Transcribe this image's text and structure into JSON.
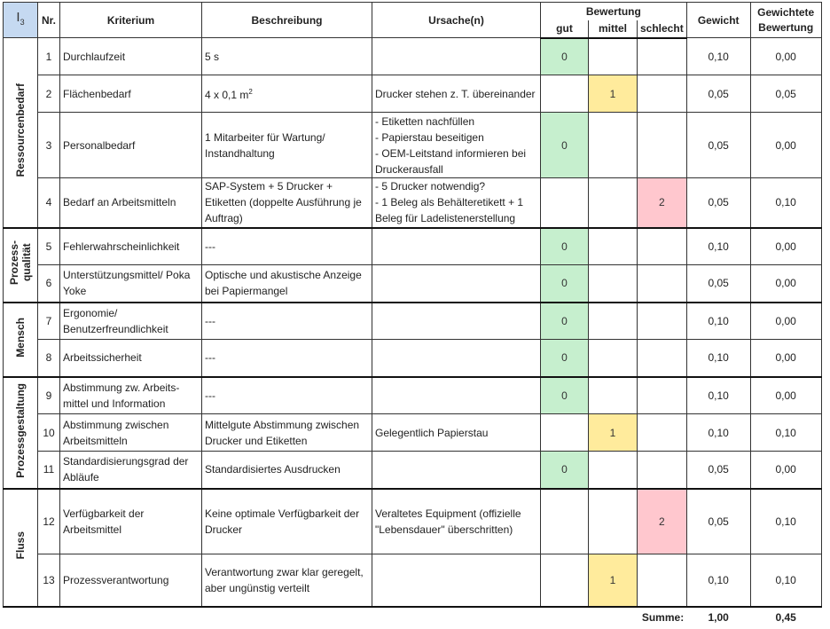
{
  "header": {
    "tag": "I",
    "tag_sub": "3",
    "nr": "Nr.",
    "kriterium": "Kriterium",
    "beschreibung": "Beschreibung",
    "ursache": "Ursache(n)",
    "bewertung": "Bewertung",
    "gut": "gut",
    "mittel": "mittel",
    "schlecht": "schlecht",
    "gewicht": "Gewicht",
    "gewichtete": "Gewichtete Bewertung"
  },
  "groups": {
    "g1": "Ressourcenbedarf",
    "g2": "Prozess-\nqualität",
    "g3": "Mensch",
    "g4": "Prozessgestaltung",
    "g5": "Fluss"
  },
  "rows": [
    {
      "nr": "1",
      "kriterium": "Durchlaufzeit",
      "beschreibung": "5 s",
      "ursache": "",
      "score": "0",
      "gewicht": "0,10",
      "gewichtete": "0,00"
    },
    {
      "nr": "2",
      "kriterium": "Flächenbedarf",
      "beschreibung": "4 x 0,1 m",
      "beschreibung_sup": "2",
      "ursache": "Drucker stehen z. T. übereinander",
      "score": "1",
      "gewicht": "0,05",
      "gewichtete": "0,05"
    },
    {
      "nr": "3",
      "kriterium": "Personalbedarf",
      "beschreibung": "1 Mitarbeiter für Wartung/ Instandhaltung",
      "ursache": "- Etiketten nachfüllen\n- Papierstau beseitigen\n- OEM-Leitstand informieren bei Druckerausfall",
      "score": "0",
      "gewicht": "0,05",
      "gewichtete": "0,00"
    },
    {
      "nr": "4",
      "kriterium": "Bedarf an Arbeitsmitteln",
      "beschreibung": "SAP-System + 5 Drucker + Etiketten (doppelte Ausführung je Auftrag)",
      "ursache": "- 5 Drucker notwendig?\n- 1 Beleg als Behälteretikett + 1 Beleg für Ladelistenerstellung",
      "score": "2",
      "gewicht": "0,05",
      "gewichtete": "0,10"
    },
    {
      "nr": "5",
      "kriterium": "Fehlerwahrscheinlichkeit",
      "beschreibung": "---",
      "ursache": "",
      "score": "0",
      "gewicht": "0,10",
      "gewichtete": "0,00"
    },
    {
      "nr": "6",
      "kriterium": "Unterstützungsmittel/ Poka Yoke",
      "beschreibung": "Optische und akustische Anzeige bei Papiermangel",
      "ursache": "",
      "score": "0",
      "gewicht": "0,05",
      "gewichtete": "0,00"
    },
    {
      "nr": "7",
      "kriterium": "Ergonomie/ Benutzerfreundlichkeit",
      "beschreibung": "---",
      "ursache": "",
      "score": "0",
      "gewicht": "0,10",
      "gewichtete": "0,00"
    },
    {
      "nr": "8",
      "kriterium": "Arbeitssicherheit",
      "beschreibung": "---",
      "ursache": "",
      "score": "0",
      "gewicht": "0,10",
      "gewichtete": "0,00"
    },
    {
      "nr": "9",
      "kriterium": "Abstimmung zw. Arbeits-mittel und Information",
      "beschreibung": "---",
      "ursache": "",
      "score": "0",
      "gewicht": "0,10",
      "gewichtete": "0,00"
    },
    {
      "nr": "10",
      "kriterium": "Abstimmung zwischen Arbeitsmitteln",
      "beschreibung": "Mittelgute Abstimmung zwischen Drucker und Etiketten",
      "ursache": "Gelegentlich Papierstau",
      "score": "1",
      "gewicht": "0,10",
      "gewichtete": "0,10"
    },
    {
      "nr": "11",
      "kriterium": "Standardisierungsgrad der Abläufe",
      "beschreibung": "Standardisiertes Ausdrucken",
      "ursache": "",
      "score": "0",
      "gewicht": "0,05",
      "gewichtete": "0,00"
    },
    {
      "nr": "12",
      "kriterium": "Verfügbarkeit der Arbeitsmittel",
      "beschreibung": "Keine optimale Verfügbarkeit der Drucker",
      "ursache": "Veraltetes Equipment (offizielle \"Lebensdauer\" überschritten)",
      "score": "2",
      "gewicht": "0,05",
      "gewichtete": "0,10"
    },
    {
      "nr": "13",
      "kriterium": "Prozessverantwortung",
      "beschreibung": "Verantwortung zwar klar geregelt, aber ungünstig verteilt",
      "ursache": "",
      "score": "1",
      "gewicht": "0,10",
      "gewichtete": "0,10"
    }
  ],
  "summary": {
    "label": "Summe:",
    "gewicht": "1,00",
    "gewichtete": "0,45"
  },
  "colors": {
    "gut": "#c6efce",
    "mittel": "#ffeb9c",
    "schlecht": "#ffc7ce",
    "tag": "#c5d9f1"
  }
}
